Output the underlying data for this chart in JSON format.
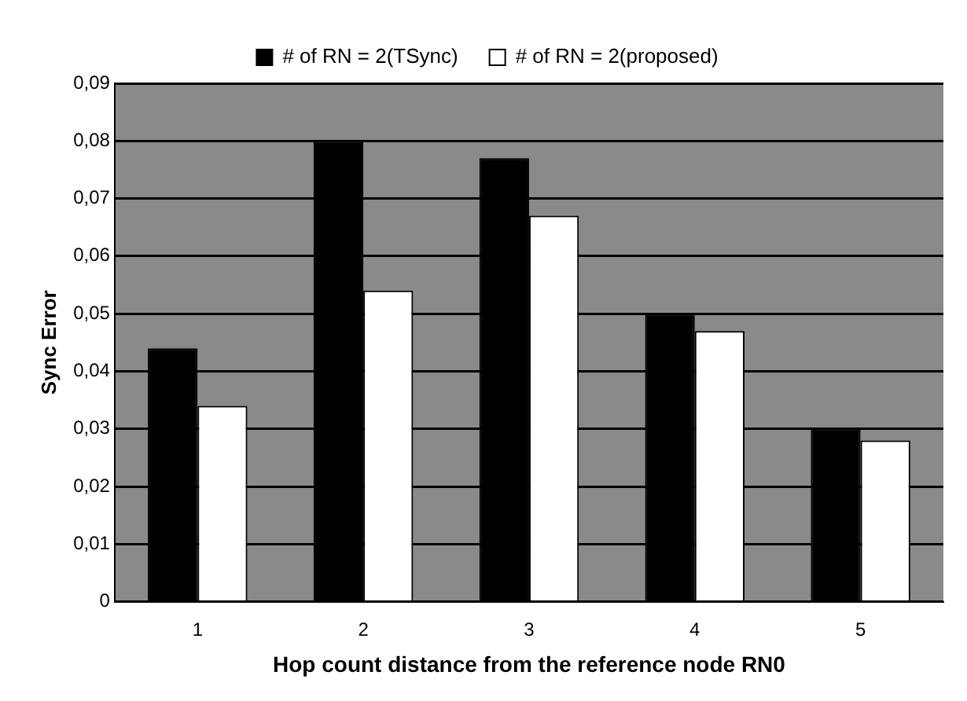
{
  "chart_data": {
    "type": "bar",
    "xlabel": "Hop count distance from the reference node RN0",
    "ylabel": "Sync Error",
    "categories": [
      "1",
      "2",
      "3",
      "4",
      "5"
    ],
    "series": [
      {
        "name": "# of RN = 2(TSync)",
        "color": "#000000",
        "values": [
          0.044,
          0.08,
          0.077,
          0.05,
          0.03
        ]
      },
      {
        "name": "# of RN = 2(proposed)",
        "color": "#ffffff",
        "values": [
          0.034,
          0.054,
          0.067,
          0.047,
          0.028
        ]
      }
    ],
    "ylim": [
      0,
      0.09
    ],
    "yticks": [
      {
        "value": 0,
        "label": "0"
      },
      {
        "value": 0.01,
        "label": "0,01"
      },
      {
        "value": 0.02,
        "label": "0,02"
      },
      {
        "value": 0.03,
        "label": "0,03"
      },
      {
        "value": 0.04,
        "label": "0,04"
      },
      {
        "value": 0.05,
        "label": "0,05"
      },
      {
        "value": 0.06,
        "label": "0,06"
      },
      {
        "value": 0.07,
        "label": "0,07"
      },
      {
        "value": 0.08,
        "label": "0,08"
      },
      {
        "value": 0.09,
        "label": "0,09"
      }
    ],
    "grid": "y",
    "legend": "top"
  }
}
